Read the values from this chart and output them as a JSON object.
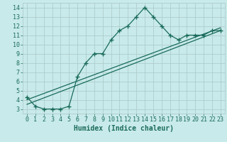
{
  "line1_x": [
    0,
    1,
    2,
    3,
    4,
    5,
    6,
    7,
    8,
    9,
    10,
    11,
    12,
    13,
    14,
    15,
    16,
    17,
    18,
    19,
    20,
    21,
    22,
    23
  ],
  "line1_y": [
    4.3,
    3.3,
    3.0,
    3.0,
    3.0,
    3.3,
    6.5,
    8.0,
    9.0,
    9.0,
    10.5,
    11.5,
    12.0,
    13.0,
    14.0,
    13.0,
    12.0,
    11.0,
    10.5,
    11.0,
    11.0,
    11.0,
    11.5,
    11.5
  ],
  "line2_x": [
    0,
    23
  ],
  "line2_y": [
    3.5,
    11.5
  ],
  "line3_x": [
    0,
    23
  ],
  "line3_y": [
    4.0,
    11.8
  ],
  "line_color": "#1a6b5a",
  "bg_color": "#c8eaea",
  "grid_color": "#aac8c8",
  "xlabel": "Humidex (Indice chaleur)",
  "xlabel_fontsize": 7,
  "tick_fontsize": 6,
  "xlim": [
    -0.5,
    23.5
  ],
  "ylim": [
    2.5,
    14.5
  ],
  "yticks": [
    3,
    4,
    5,
    6,
    7,
    8,
    9,
    10,
    11,
    12,
    13,
    14
  ],
  "xticks": [
    0,
    1,
    2,
    3,
    4,
    5,
    6,
    7,
    8,
    9,
    10,
    11,
    12,
    13,
    14,
    15,
    16,
    17,
    18,
    19,
    20,
    21,
    22,
    23
  ]
}
